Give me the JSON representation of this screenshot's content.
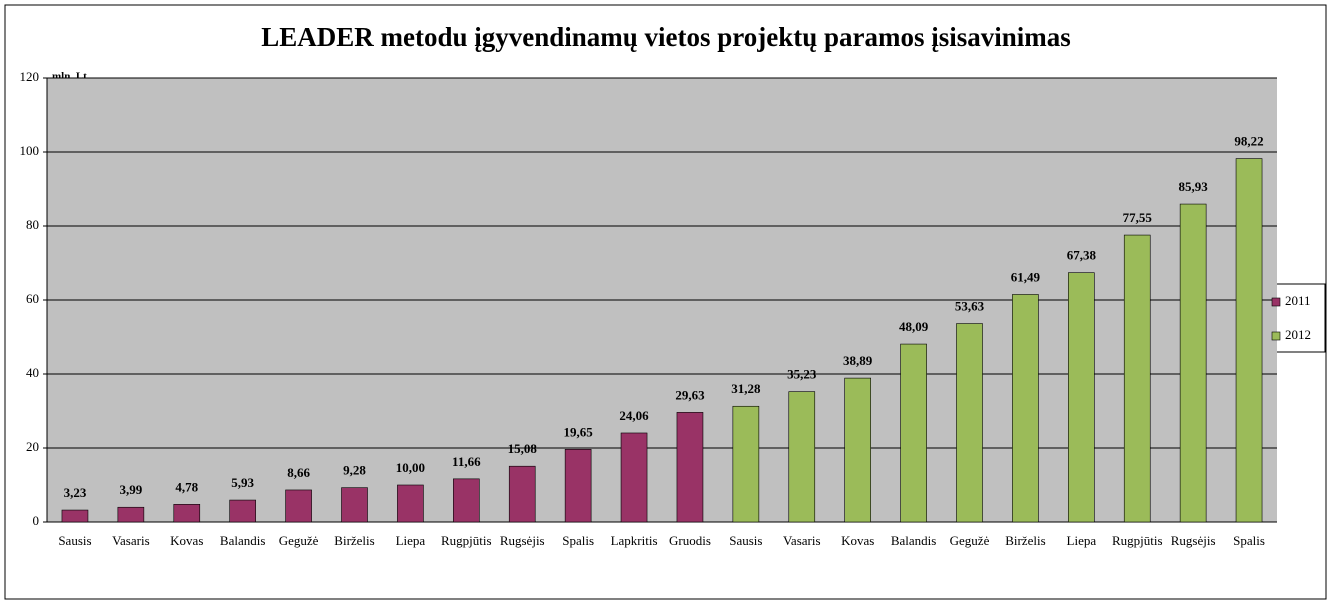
{
  "chart_data": {
    "type": "bar",
    "title": "LEADER metodu įgyvendinamų  vietos projektų paramos įsisavinimas",
    "y_label": "mln. Lt",
    "categories": [
      "Sausis",
      "Vasaris",
      "Kovas",
      "Balandis",
      "Gegužė",
      "Birželis",
      "Liepa",
      "Rugpjūtis",
      "Rugsėjis",
      "Spalis",
      "Lapkritis",
      "Gruodis",
      "Sausis",
      "Vasaris",
      "Kovas",
      "Balandis",
      "Gegužė",
      "Birželis",
      "Liepa",
      "Rugpjūtis",
      "Rugsėjis",
      "Spalis"
    ],
    "series": [
      {
        "name": "2011",
        "color": "#993366",
        "values": [
          3.23,
          3.99,
          4.78,
          5.93,
          8.66,
          9.28,
          10.0,
          11.66,
          15.08,
          19.65,
          24.06,
          29.63,
          null,
          null,
          null,
          null,
          null,
          null,
          null,
          null,
          null,
          null
        ],
        "value_labels": [
          "3,23",
          "3,99",
          "4,78",
          "5,93",
          "8,66",
          "9,28",
          "10,00",
          "11,66",
          "15,08",
          "19,65",
          "24,06",
          "29,63",
          null,
          null,
          null,
          null,
          null,
          null,
          null,
          null,
          null,
          null
        ]
      },
      {
        "name": "2012",
        "color": "#9bbb59",
        "values": [
          null,
          null,
          null,
          null,
          null,
          null,
          null,
          null,
          null,
          null,
          null,
          null,
          31.28,
          35.23,
          38.89,
          48.09,
          53.63,
          61.49,
          67.38,
          77.55,
          85.93,
          98.22
        ],
        "value_labels": [
          null,
          null,
          null,
          null,
          null,
          null,
          null,
          null,
          null,
          null,
          null,
          null,
          "31,28",
          "35,23",
          "38,89",
          "48,09",
          "53,63",
          "61,49",
          "67,38",
          "77,55",
          "85,93",
          "98,22"
        ]
      }
    ],
    "ylim": [
      0,
      120
    ],
    "yticks": [
      0,
      20,
      40,
      60,
      80,
      100,
      120
    ],
    "grid": true,
    "legend": "right"
  }
}
